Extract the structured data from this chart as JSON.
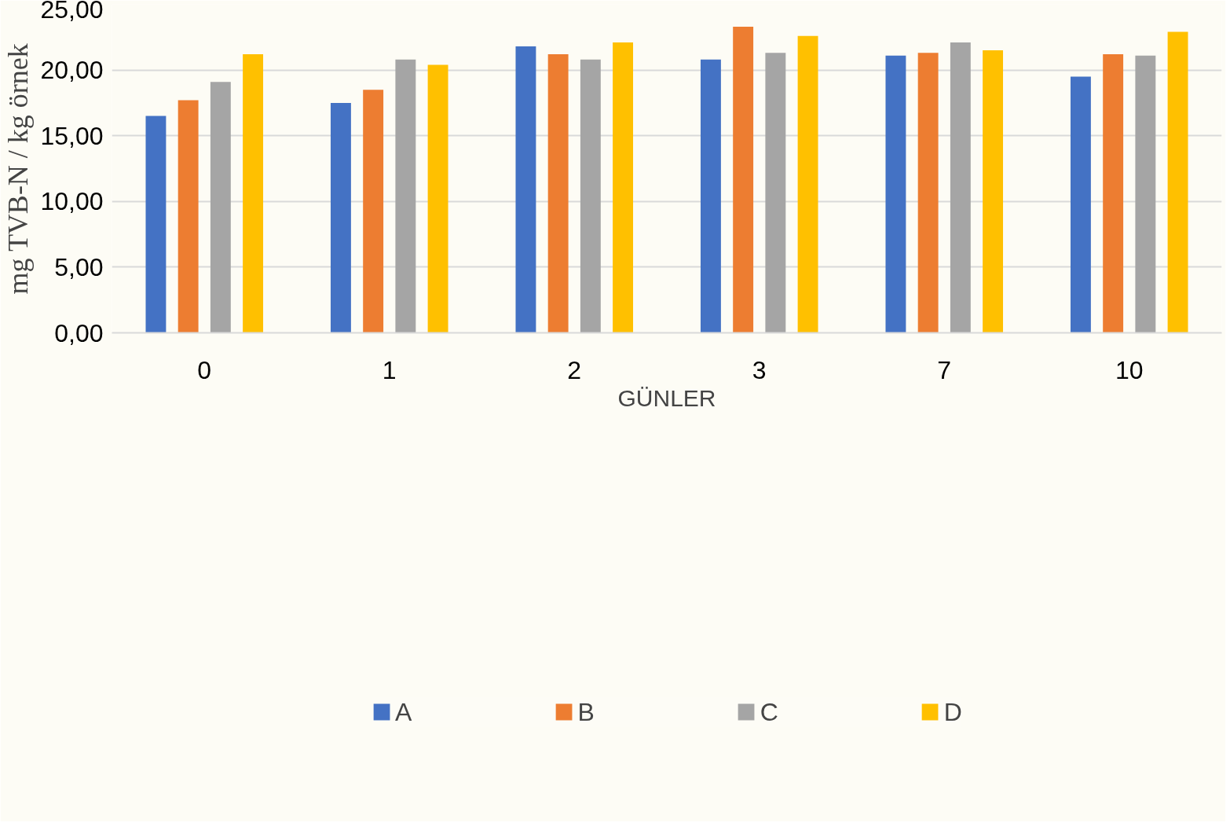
{
  "chart_data": {
    "type": "bar",
    "xlabel": "GÜNLER",
    "ylabel": "mg TVB-N / kg örnek",
    "categories": [
      "0",
      "1",
      "2",
      "3",
      "7",
      "10"
    ],
    "series": [
      {
        "name": "A",
        "color": "#4472c4",
        "values": [
          16.5,
          17.5,
          21.8,
          20.8,
          21.1,
          19.5
        ]
      },
      {
        "name": "B",
        "color": "#ed7d31",
        "values": [
          17.7,
          18.5,
          21.2,
          23.3,
          21.3,
          21.2
        ]
      },
      {
        "name": "C",
        "color": "#a5a5a5",
        "values": [
          19.1,
          20.8,
          20.8,
          21.3,
          22.1,
          21.1
        ]
      },
      {
        "name": "D",
        "color": "#ffc000",
        "values": [
          21.2,
          20.4,
          22.1,
          22.6,
          21.5,
          22.9
        ]
      }
    ],
    "ylim": [
      0,
      25
    ],
    "yticks": [
      {
        "value": 0,
        "label": "0,00"
      },
      {
        "value": 5,
        "label": "5,00"
      },
      {
        "value": 10,
        "label": "10,00"
      },
      {
        "value": 15,
        "label": "15,00"
      },
      {
        "value": 20,
        "label": "20,00"
      },
      {
        "value": 25,
        "label": "25,00"
      }
    ],
    "grid": "y",
    "legend": "bottom"
  }
}
